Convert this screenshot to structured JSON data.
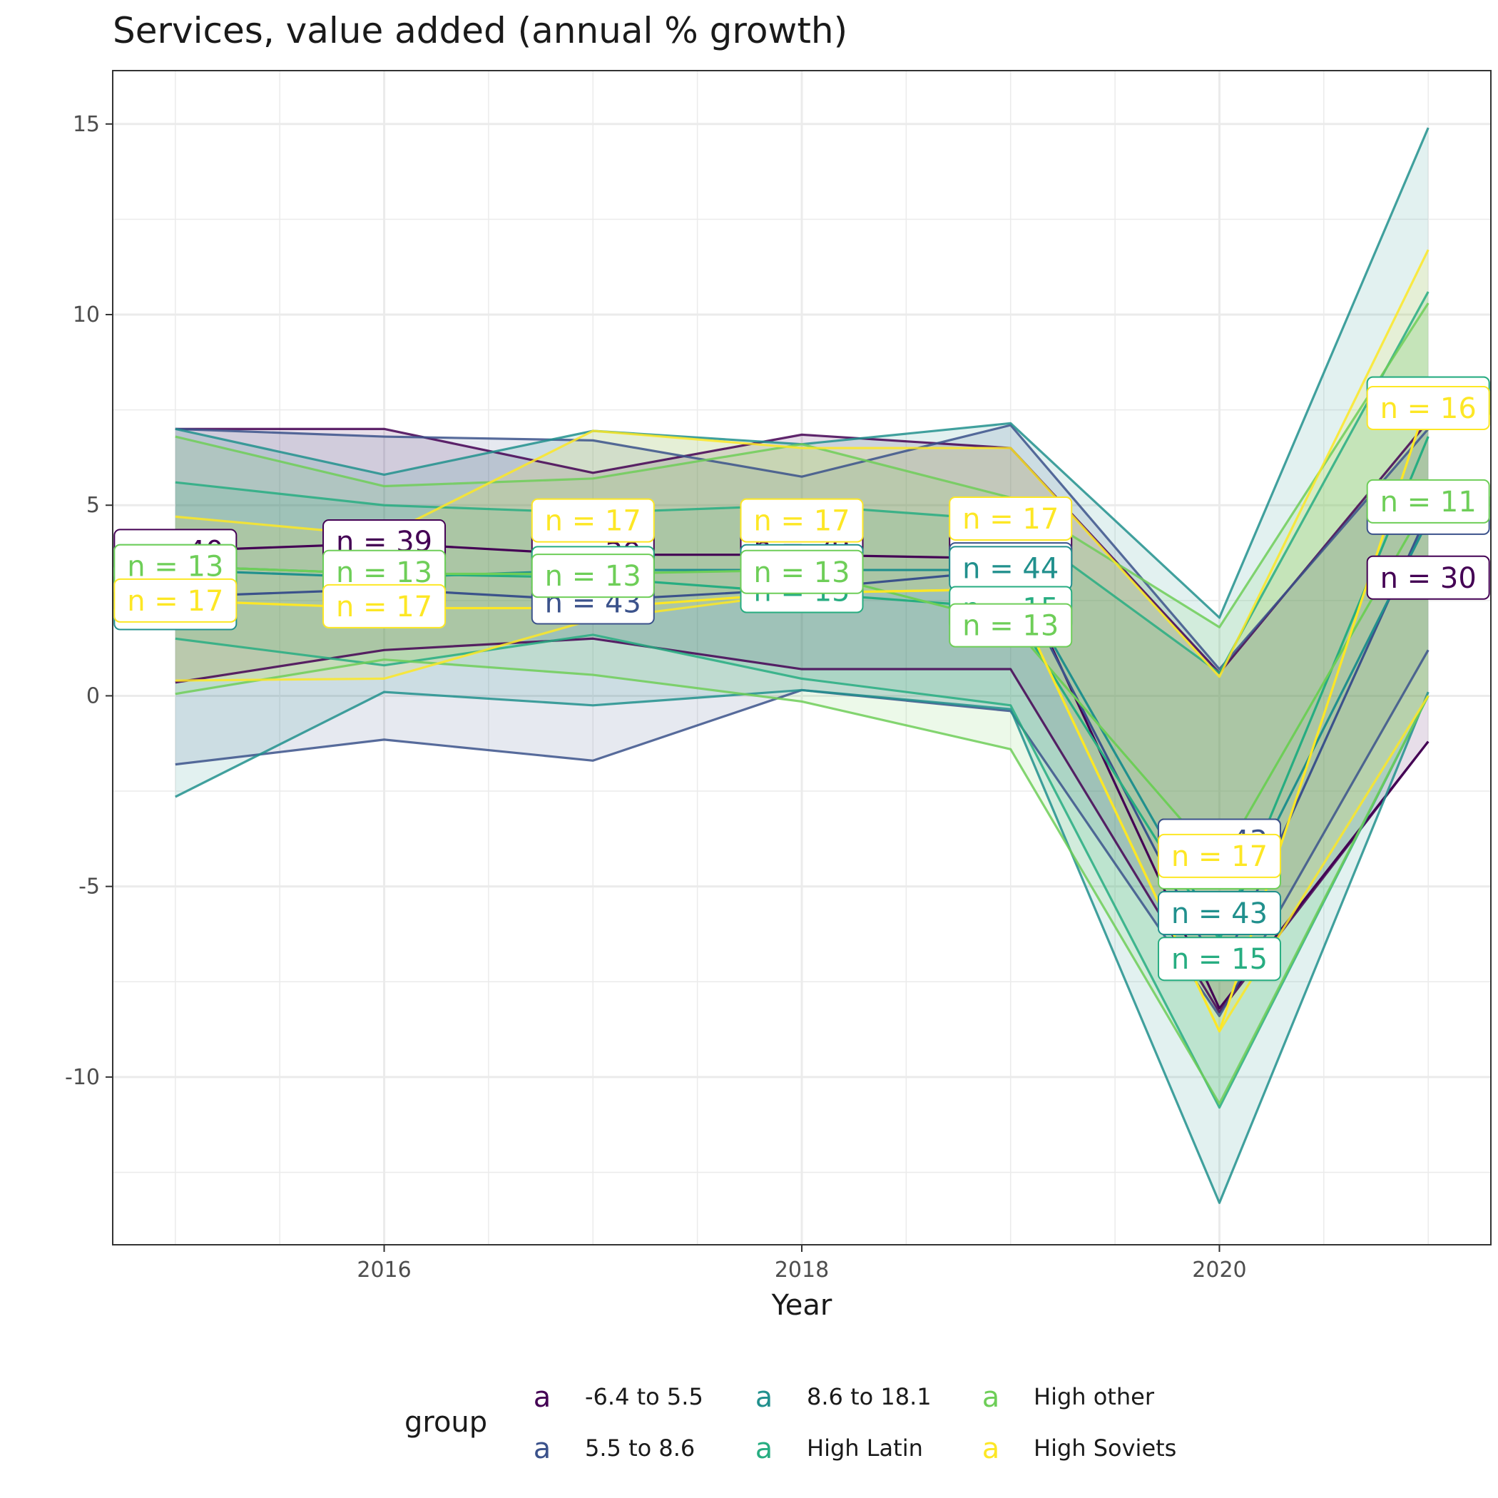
{
  "chart_data": {
    "type": "line",
    "title": "Services, value added (annual % growth)",
    "xlabel": "Year",
    "ylabel": "",
    "x": [
      2015,
      2016,
      2017,
      2018,
      2019,
      2020,
      2021
    ],
    "x_ticks": [
      2016,
      2018,
      2020
    ],
    "y_ticks": [
      15,
      10,
      5,
      0,
      -5,
      -10
    ],
    "y_tick_labels": [
      "15",
      "10",
      "5",
      "0",
      "-5",
      "-10"
    ],
    "xlim": [
      2014.7,
      2021.3
    ],
    "ylim": [
      -14.4,
      16.4
    ],
    "grid": true,
    "legend": {
      "title": "group",
      "position": "bottom",
      "key_glyph": "a"
    },
    "series": [
      {
        "name": "-6.4 to 5.5",
        "color": "#440154",
        "mean": [
          3.8,
          4.0,
          3.7,
          3.7,
          3.6,
          -8.2,
          -1.2
        ],
        "upper": [
          7.0,
          7.0,
          5.85,
          6.85,
          6.5,
          0.6,
          7.2
        ],
        "lower": [
          0.35,
          1.2,
          1.5,
          0.7,
          0.7,
          -8.3,
          -1.2
        ],
        "labels": [
          {
            "x": 2015,
            "y": 3.8,
            "text": "n = 40"
          },
          {
            "x": 2016,
            "y": 4.05,
            "text": "n = 39"
          },
          {
            "x": 2017,
            "y": 3.75,
            "text": "n = 39"
          },
          {
            "x": 2018,
            "y": 3.9,
            "text": "n = 39"
          },
          {
            "x": 2019,
            "y": 3.7,
            "text": "n = 40"
          },
          {
            "x": 2020,
            "y": -3.8,
            "text": "n = 40"
          },
          {
            "x": 2021,
            "y": 3.1,
            "text": "n = 30"
          }
        ]
      },
      {
        "name": "5.5 to 8.6",
        "color": "#3b528b",
        "mean": [
          2.6,
          2.8,
          2.5,
          2.8,
          3.3,
          -7.3,
          4.8
        ],
        "upper": [
          7.0,
          6.8,
          6.7,
          5.75,
          7.1,
          0.7,
          7.0
        ],
        "lower": [
          -1.8,
          -1.15,
          -1.7,
          0.15,
          -0.4,
          -8.4,
          1.2
        ],
        "labels": [
          {
            "x": 2015,
            "y": 2.7,
            "text": "n = 43"
          },
          {
            "x": 2016,
            "y": 2.85,
            "text": "n = 43"
          },
          {
            "x": 2017,
            "y": 2.45,
            "text": "n = 43"
          },
          {
            "x": 2018,
            "y": 2.85,
            "text": "n = 43"
          },
          {
            "x": 2019,
            "y": 3.45,
            "text": "n = 43"
          },
          {
            "x": 2020,
            "y": -3.8,
            "text": "n = 43"
          },
          {
            "x": 2021,
            "y": 4.8,
            "text": "n = 31"
          }
        ]
      },
      {
        "name": "8.6 to 18.1",
        "color": "#21908d",
        "mean": [
          3.3,
          3.1,
          3.3,
          3.3,
          3.3,
          -6.3,
          4.6
        ],
        "upper": [
          7.0,
          5.8,
          6.95,
          6.6,
          7.15,
          2.05,
          14.9
        ],
        "lower": [
          -2.65,
          0.1,
          -0.25,
          0.15,
          -0.35,
          -13.3,
          0.1
        ],
        "labels": [
          {
            "x": 2015,
            "y": 2.3,
            "text": "n = 43"
          },
          {
            "x": 2016,
            "y": 3.1,
            "text": "n = 44"
          },
          {
            "x": 2017,
            "y": 3.25,
            "text": "n = 44"
          },
          {
            "x": 2018,
            "y": 3.4,
            "text": "n = 44"
          },
          {
            "x": 2019,
            "y": 3.35,
            "text": "n = 44"
          },
          {
            "x": 2020,
            "y": -5.7,
            "text": "n = 43"
          },
          {
            "x": 2021,
            "y": 7.8,
            "text": "n = 31"
          }
        ]
      },
      {
        "name": "High Latin",
        "color": "#27ad81",
        "mean": [
          3.4,
          3.2,
          3.1,
          2.7,
          2.3,
          -6.4,
          6.8
        ],
        "upper": [
          5.6,
          5.0,
          4.8,
          5.0,
          4.6,
          0.6,
          10.6
        ],
        "lower": [
          1.5,
          0.8,
          1.6,
          0.45,
          -0.25,
          -10.8,
          0.0
        ],
        "labels": [
          {
            "x": 2015,
            "y": 3.4,
            "text": "n = 15"
          },
          {
            "x": 2016,
            "y": 3.15,
            "text": "n = 15"
          },
          {
            "x": 2017,
            "y": 3.35,
            "text": "n = 15"
          },
          {
            "x": 2018,
            "y": 2.75,
            "text": "n = 15"
          },
          {
            "x": 2019,
            "y": 2.3,
            "text": "n = 15"
          },
          {
            "x": 2020,
            "y": -6.9,
            "text": "n = 15"
          },
          {
            "x": 2021,
            "y": 7.8,
            "text": "n = 15"
          }
        ]
      },
      {
        "name": "High other",
        "color": "#6ece58",
        "mean": [
          3.4,
          3.2,
          3.2,
          3.3,
          1.9,
          -4.4,
          5.1
        ],
        "upper": [
          6.8,
          5.5,
          5.7,
          6.6,
          5.2,
          1.8,
          10.3
        ],
        "lower": [
          0.05,
          0.95,
          0.55,
          -0.15,
          -1.4,
          -10.7,
          0.0
        ],
        "labels": [
          {
            "x": 2015,
            "y": 3.4,
            "text": "n = 13"
          },
          {
            "x": 2016,
            "y": 3.25,
            "text": "n = 13"
          },
          {
            "x": 2017,
            "y": 3.15,
            "text": "n = 13"
          },
          {
            "x": 2018,
            "y": 3.25,
            "text": "n = 13"
          },
          {
            "x": 2019,
            "y": 1.85,
            "text": "n = 13"
          },
          {
            "x": 2020,
            "y": -4.5,
            "text": "n = 13"
          },
          {
            "x": 2021,
            "y": 5.1,
            "text": "n = 11"
          }
        ]
      },
      {
        "name": "High Soviets",
        "color": "#fde725",
        "mean": [
          2.5,
          2.3,
          2.3,
          2.7,
          2.8,
          -8.8,
          7.8
        ],
        "upper": [
          4.7,
          4.2,
          6.95,
          6.5,
          6.5,
          0.5,
          11.7
        ],
        "lower": [
          0.4,
          0.45,
          2.0,
          2.7,
          2.8,
          -8.8,
          0.0
        ],
        "labels": [
          {
            "x": 2015,
            "y": 2.5,
            "text": "n = 17"
          },
          {
            "x": 2016,
            "y": 2.35,
            "text": "n = 17"
          },
          {
            "x": 2017,
            "y": 4.6,
            "text": "n = 17"
          },
          {
            "x": 2018,
            "y": 4.6,
            "text": "n = 17"
          },
          {
            "x": 2019,
            "y": 4.65,
            "text": "n = 17"
          },
          {
            "x": 2020,
            "y": -4.2,
            "text": "n = 17"
          },
          {
            "x": 2021,
            "y": 7.55,
            "text": "n = 16"
          }
        ]
      }
    ]
  }
}
